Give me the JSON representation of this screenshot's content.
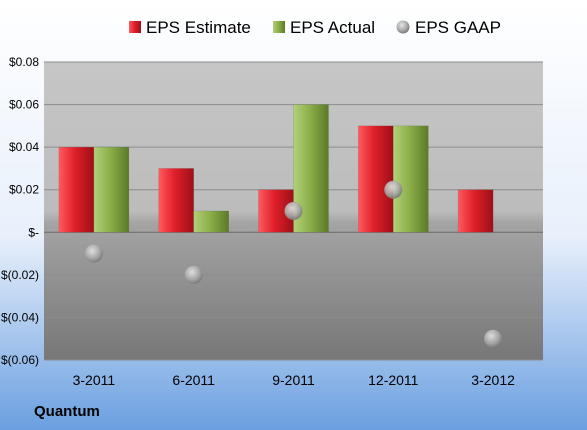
{
  "chart_data": {
    "type": "bar",
    "company": "Quantum",
    "categories": [
      "3-2011",
      "6-2011",
      "9-2011",
      "12-2011",
      "3-2012"
    ],
    "series": [
      {
        "name": "EPS Estimate",
        "kind": "bar",
        "color": "#e0202a",
        "values": [
          0.04,
          0.03,
          0.02,
          0.05,
          0.02
        ]
      },
      {
        "name": "EPS Actual",
        "kind": "bar",
        "color": "#8db04a",
        "values": [
          0.04,
          0.01,
          0.06,
          0.05,
          null
        ]
      },
      {
        "name": "EPS GAAP",
        "kind": "marker",
        "color": "#a0a0a0",
        "values": [
          -0.01,
          -0.02,
          0.01,
          0.02,
          -0.05
        ]
      }
    ],
    "ylim": [
      -0.06,
      0.08
    ],
    "yticks": [
      {
        "value": 0.08,
        "label": "$0.08"
      },
      {
        "value": 0.06,
        "label": "$0.06"
      },
      {
        "value": 0.04,
        "label": "$0.04"
      },
      {
        "value": 0.02,
        "label": "$0.02"
      },
      {
        "value": 0,
        "label": "$-"
      },
      {
        "value": -0.02,
        "label": "$(0.02)"
      },
      {
        "value": -0.04,
        "label": "$(0.04)"
      },
      {
        "value": -0.06,
        "label": "$(0.06)"
      }
    ],
    "grid": true,
    "legend": "top"
  }
}
